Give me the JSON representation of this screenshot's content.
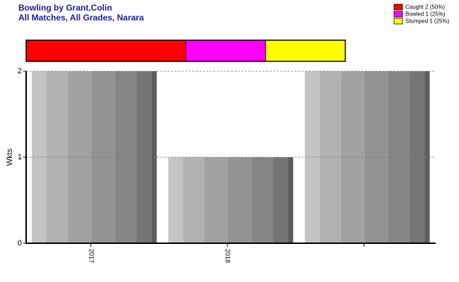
{
  "chart_data": {
    "type": "bar",
    "title": "Bowling by Grant,Colin",
    "subtitle": "All Matches, All Grades, Narara",
    "y_label": "Wkts",
    "categories": [
      "2017",
      "2018",
      null
    ],
    "values": [
      2,
      1,
      2
    ],
    "ylim": [
      0,
      2
    ],
    "yticks": [
      0,
      1,
      2
    ],
    "grid": true,
    "dismissals": [
      {
        "name": "Caught 2 (50%)",
        "color": "#ff0000",
        "value": 2
      },
      {
        "name": "Bowled 1 (25%)",
        "color": "#ff00ff",
        "value": 1
      },
      {
        "name": "Stumped 1 (25%)",
        "color": "#ffff00",
        "value": 1
      }
    ],
    "legend": "top-right"
  }
}
